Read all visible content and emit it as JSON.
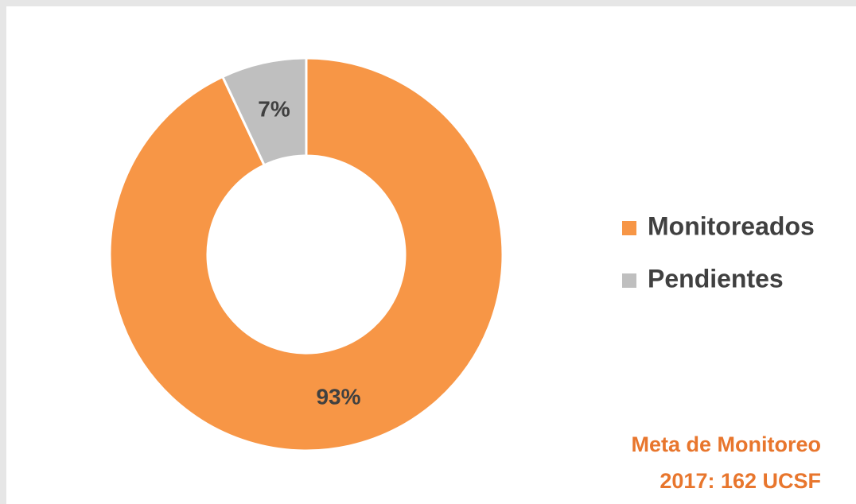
{
  "chart_data": {
    "type": "donut",
    "categories": [
      "Monitoreados",
      "Pendientes"
    ],
    "values": [
      93,
      7
    ],
    "value_labels": [
      "93%",
      "7%"
    ],
    "colors": [
      "#f79646",
      "#bfbfbf"
    ],
    "legend": "right",
    "annotation": [
      "Meta de Monitoreo",
      "2017: 162 UCSF"
    ]
  }
}
